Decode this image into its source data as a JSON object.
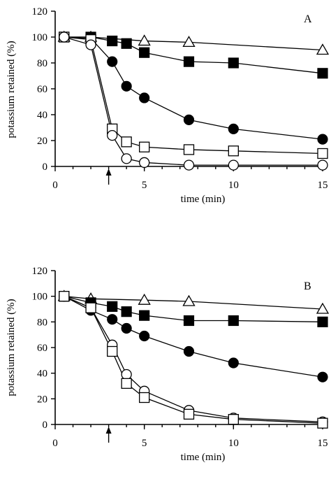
{
  "chart_data": [
    {
      "type": "line",
      "panel_label": "A",
      "xlabel": "time (min)",
      "ylabel": "potassium retained (%)",
      "xlim": [
        0,
        15
      ],
      "ylim": [
        0,
        120
      ],
      "xticks": [
        "0",
        "5",
        "10",
        "15"
      ],
      "yticks": [
        "0",
        "20",
        "40",
        "60",
        "80",
        "100",
        "120"
      ],
      "arrow_at": 3,
      "grid": false,
      "series": [
        {
          "marker": "open-triangle",
          "x": [
            0.5,
            2,
            5,
            7.5,
            15
          ],
          "y": [
            100,
            100,
            97,
            96,
            90
          ]
        },
        {
          "marker": "filled-square",
          "x": [
            0.5,
            2,
            3.2,
            4,
            5,
            7.5,
            10,
            15
          ],
          "y": [
            100,
            100,
            97,
            95,
            88,
            81,
            80,
            72
          ]
        },
        {
          "marker": "filled-circle",
          "x": [
            0.5,
            2,
            3.2,
            4,
            5,
            7.5,
            10,
            15
          ],
          "y": [
            100,
            99,
            81,
            62,
            53,
            36,
            29,
            21
          ]
        },
        {
          "marker": "open-square",
          "x": [
            0.5,
            2,
            3.2,
            4,
            5,
            7.5,
            10,
            15
          ],
          "y": [
            100,
            98,
            29,
            19,
            15,
            13,
            12,
            10
          ]
        },
        {
          "marker": "open-circle",
          "x": [
            0.5,
            2,
            3.2,
            4,
            5,
            7.5,
            10,
            15
          ],
          "y": [
            100,
            94,
            24,
            6,
            3,
            1,
            1,
            1
          ]
        }
      ]
    },
    {
      "type": "line",
      "panel_label": "B",
      "xlabel": "time (min)",
      "ylabel": "potassium retained (%)",
      "xlim": [
        0,
        15
      ],
      "ylim": [
        0,
        120
      ],
      "xticks": [
        "0",
        "5",
        "10",
        "15"
      ],
      "yticks": [
        "0",
        "20",
        "40",
        "60",
        "80",
        "100",
        "120"
      ],
      "arrow_at": 3,
      "grid": false,
      "series": [
        {
          "marker": "open-triangle",
          "x": [
            0.5,
            2,
            5,
            7.5,
            15
          ],
          "y": [
            100,
            98,
            97,
            96,
            90
          ]
        },
        {
          "marker": "filled-square",
          "x": [
            0.5,
            2,
            3.2,
            4,
            5,
            7.5,
            10,
            15
          ],
          "y": [
            100,
            95,
            92,
            88,
            85,
            81,
            81,
            80
          ]
        },
        {
          "marker": "filled-circle",
          "x": [
            0.5,
            2,
            3.2,
            4,
            5,
            7.5,
            10,
            15
          ],
          "y": [
            100,
            89,
            82,
            75,
            69,
            57,
            48,
            37
          ]
        },
        {
          "marker": "open-circle",
          "x": [
            0.5,
            2,
            3.2,
            4,
            5,
            7.5,
            10,
            15
          ],
          "y": [
            100,
            91,
            62,
            39,
            26,
            11,
            5,
            2
          ]
        },
        {
          "marker": "open-square",
          "x": [
            0.5,
            2,
            3.2,
            4,
            5,
            7.5,
            10,
            15
          ],
          "y": [
            100,
            91,
            57,
            32,
            21,
            8,
            4,
            1
          ]
        }
      ]
    }
  ]
}
